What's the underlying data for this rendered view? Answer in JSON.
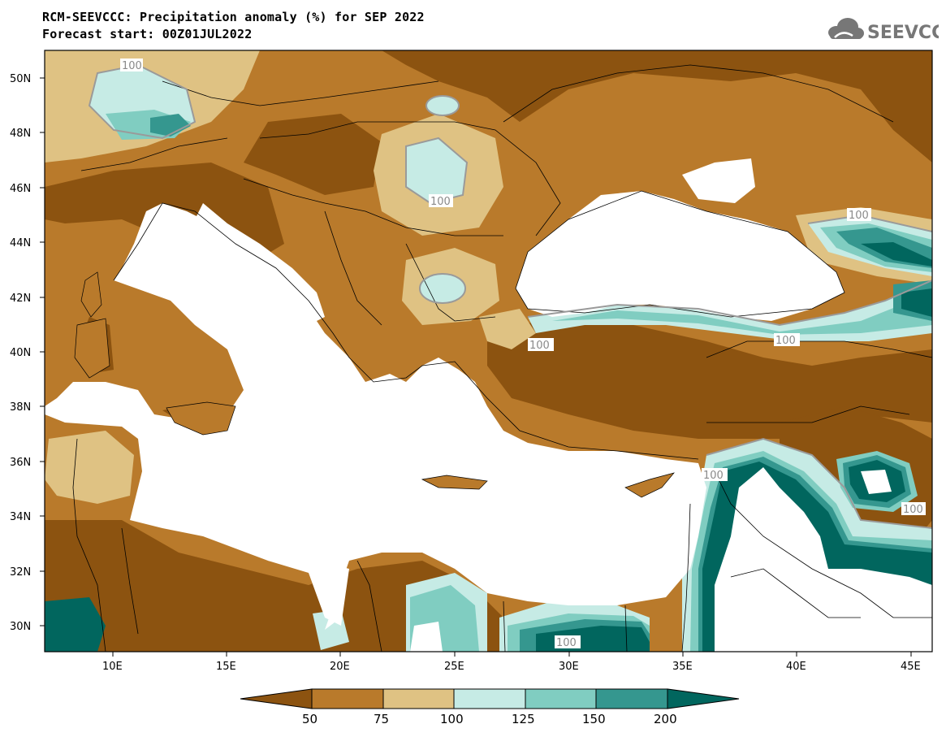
{
  "header": {
    "title": "RCM-SEEVCCC: Precipitation anomaly (%) for SEP 2022",
    "subtitle": "Forecast start: 00Z01JUL2022"
  },
  "logo": {
    "text": "SEEVCCC",
    "icon": "cloud-icon"
  },
  "map": {
    "lon_ticks": [
      "10E",
      "15E",
      "20E",
      "25E",
      "30E",
      "35E",
      "40E",
      "45E"
    ],
    "lat_ticks": [
      "50N",
      "48N",
      "46N",
      "44N",
      "42N",
      "40N",
      "38N",
      "36N",
      "34N",
      "32N",
      "30N"
    ],
    "contour_label": "100",
    "colors": {
      "lt50": "#8c5310",
      "50_75": "#b97a2b",
      "75_100": "#dfc283",
      "100_125": "#c6ebe5",
      "125_150": "#80cdc1",
      "150_200": "#35978f",
      "gt200": "#01665e",
      "sea": "#ffffff",
      "border": "#000000",
      "contour": "#9a9a9a"
    }
  },
  "colorbar": {
    "labels": [
      "50",
      "75",
      "100",
      "125",
      "150",
      "200"
    ],
    "colors": [
      "#8c5310",
      "#b97a2b",
      "#dfc283",
      "#c6ebe5",
      "#80cdc1",
      "#35978f",
      "#01665e"
    ]
  }
}
